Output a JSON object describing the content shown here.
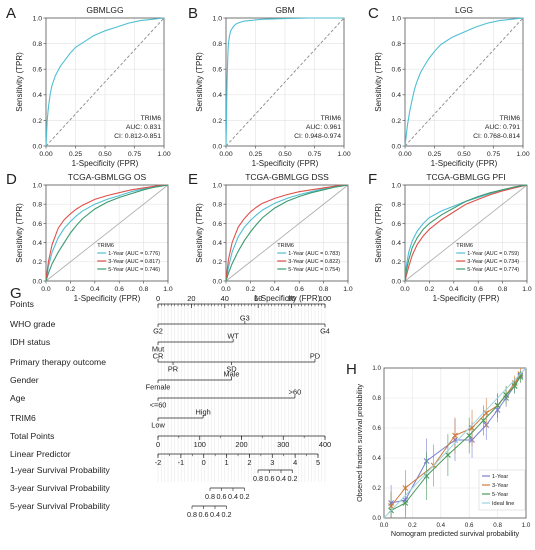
{
  "colors": {
    "cyan": "#4fbfd3",
    "red": "#e0504a",
    "green": "#3a9a6e",
    "teal": "#22a6a0",
    "grid": "#e6e6e6",
    "diag": "#8a8a8a",
    "frame": "#555555"
  },
  "chart_data": [
    {
      "id": "A",
      "panel_label": "A",
      "type": "line",
      "title": "GBMLGG",
      "xlabel": "1-Specificity (FPR)",
      "ylabel": "Sensitivity (TPR)",
      "xlim": [
        0,
        1
      ],
      "ylim": [
        0,
        1
      ],
      "xticks": [
        "0.00",
        "0.25",
        "0.50",
        "0.75",
        "1.00"
      ],
      "yticks": [
        "0.0",
        "0.2",
        "0.4",
        "0.6",
        "0.8",
        "1.0"
      ],
      "grid": true,
      "diagonal": "dashed",
      "series": [
        {
          "color": "cyan",
          "x": [
            0,
            0.005,
            0.01,
            0.02,
            0.035,
            0.05,
            0.08,
            0.12,
            0.16,
            0.2,
            0.25,
            0.3,
            0.35,
            0.4,
            0.5,
            0.6,
            0.7,
            0.8,
            0.9,
            1.0
          ],
          "y": [
            0,
            0.1,
            0.2,
            0.3,
            0.4,
            0.47,
            0.55,
            0.62,
            0.67,
            0.72,
            0.77,
            0.8,
            0.83,
            0.86,
            0.9,
            0.93,
            0.96,
            0.98,
            0.99,
            1.0
          ]
        }
      ],
      "annotation": [
        "TRIM6",
        "AUC: 0.831",
        "CI: 0.812-0.851"
      ]
    },
    {
      "id": "B",
      "panel_label": "B",
      "type": "line",
      "title": "GBM",
      "xlabel": "1-Specificity (FPR)",
      "ylabel": "Sensitivity (TPR)",
      "xlim": [
        0,
        1
      ],
      "ylim": [
        0,
        1
      ],
      "xticks": [
        "0.00",
        "0.25",
        "0.50",
        "0.75",
        "1.00"
      ],
      "yticks": [
        "0.0",
        "0.2",
        "0.4",
        "0.6",
        "0.8",
        "1.0"
      ],
      "grid": true,
      "diagonal": "dashed",
      "series": [
        {
          "color": "cyan",
          "x": [
            0,
            0.003,
            0.006,
            0.01,
            0.015,
            0.02,
            0.03,
            0.04,
            0.06,
            0.08,
            0.1,
            0.15,
            0.2,
            0.3,
            0.5,
            0.7,
            1.0
          ],
          "y": [
            0,
            0.15,
            0.35,
            0.55,
            0.7,
            0.8,
            0.86,
            0.9,
            0.93,
            0.95,
            0.96,
            0.975,
            0.98,
            0.99,
            0.995,
            1.0,
            1.0
          ]
        }
      ],
      "annotation": [
        "TRIM6",
        "AUC: 0.961",
        "CI: 0.948-0.974"
      ]
    },
    {
      "id": "C",
      "panel_label": "C",
      "type": "line",
      "title": "LGG",
      "xlabel": "1-Specificity (FPR)",
      "ylabel": "Sensitivity (TPR)",
      "xlim": [
        0,
        1
      ],
      "ylim": [
        0,
        1
      ],
      "xticks": [
        "0.00",
        "0.25",
        "0.50",
        "0.75",
        "1.00"
      ],
      "yticks": [
        "0.0",
        "0.2",
        "0.4",
        "0.6",
        "0.8",
        "1.0"
      ],
      "grid": true,
      "diagonal": "dashed",
      "series": [
        {
          "color": "cyan",
          "x": [
            0,
            0.01,
            0.02,
            0.04,
            0.06,
            0.08,
            0.1,
            0.13,
            0.16,
            0.2,
            0.25,
            0.3,
            0.35,
            0.4,
            0.5,
            0.6,
            0.7,
            0.8,
            0.9,
            1.0
          ],
          "y": [
            0,
            0.08,
            0.16,
            0.27,
            0.36,
            0.44,
            0.5,
            0.57,
            0.62,
            0.68,
            0.74,
            0.79,
            0.82,
            0.85,
            0.89,
            0.93,
            0.96,
            0.98,
            0.99,
            1.0
          ]
        }
      ],
      "annotation": [
        "TRIM6",
        "AUC: 0.791",
        "CI: 0.768-0.814"
      ]
    },
    {
      "id": "D",
      "panel_label": "D",
      "type": "line",
      "title": "TCGA-GBMLGG OS",
      "xlabel": "1-Specificity (FPR)",
      "ylabel": "Sensitivity (TPR)",
      "xlim": [
        0,
        1
      ],
      "ylim": [
        0,
        1
      ],
      "xticks": [
        "0.0",
        "0.2",
        "0.4",
        "0.6",
        "0.8",
        "1.0"
      ],
      "yticks": [
        "0.0",
        "0.2",
        "0.4",
        "0.6",
        "0.8",
        "1.0"
      ],
      "grid": true,
      "diagonal": "solid",
      "series": [
        {
          "name": "1-Year (AUC = 0.776)",
          "color": "cyan",
          "x": [
            0,
            0.02,
            0.05,
            0.1,
            0.15,
            0.2,
            0.25,
            0.3,
            0.4,
            0.5,
            0.6,
            0.7,
            0.8,
            0.9,
            1.0
          ],
          "y": [
            0,
            0.15,
            0.3,
            0.45,
            0.55,
            0.62,
            0.68,
            0.73,
            0.8,
            0.85,
            0.89,
            0.93,
            0.96,
            0.98,
            1.0
          ]
        },
        {
          "name": "3-Year (AUC = 0.817)",
          "color": "red",
          "x": [
            0,
            0.02,
            0.05,
            0.1,
            0.15,
            0.2,
            0.25,
            0.3,
            0.4,
            0.5,
            0.6,
            0.7,
            0.8,
            0.9,
            1.0
          ],
          "y": [
            0,
            0.2,
            0.38,
            0.55,
            0.64,
            0.7,
            0.75,
            0.79,
            0.85,
            0.89,
            0.92,
            0.95,
            0.97,
            0.99,
            1.0
          ]
        },
        {
          "name": "5-Year (AUC = 0.746)",
          "color": "green",
          "x": [
            0,
            0.02,
            0.05,
            0.1,
            0.15,
            0.2,
            0.25,
            0.3,
            0.4,
            0.5,
            0.6,
            0.7,
            0.8,
            0.9,
            1.0
          ],
          "y": [
            0,
            0.08,
            0.18,
            0.3,
            0.4,
            0.5,
            0.58,
            0.65,
            0.75,
            0.82,
            0.87,
            0.91,
            0.95,
            0.98,
            1.0
          ]
        }
      ],
      "legend_title": "TRIM6",
      "legend": "bottom-right"
    },
    {
      "id": "E",
      "panel_label": "E",
      "type": "line",
      "title": "TCGA-GBMLGG DSS",
      "xlabel": "1-Specificity (FPR)",
      "ylabel": "Sensitivity (TPR)",
      "xlim": [
        0,
        1
      ],
      "ylim": [
        0,
        1
      ],
      "xticks": [
        "0.0",
        "0.2",
        "0.4",
        "0.6",
        "0.8",
        "1.0"
      ],
      "yticks": [
        "0.0",
        "0.2",
        "0.4",
        "0.6",
        "0.8",
        "1.0"
      ],
      "grid": true,
      "diagonal": "solid",
      "series": [
        {
          "name": "1-Year (AUC = 0.783)",
          "color": "cyan",
          "x": [
            0,
            0.02,
            0.05,
            0.1,
            0.15,
            0.2,
            0.25,
            0.3,
            0.4,
            0.5,
            0.6,
            0.7,
            0.8,
            0.9,
            1.0
          ],
          "y": [
            0,
            0.14,
            0.3,
            0.46,
            0.56,
            0.63,
            0.69,
            0.74,
            0.81,
            0.86,
            0.9,
            0.93,
            0.96,
            0.98,
            1.0
          ]
        },
        {
          "name": "3-Year (AUC = 0.822)",
          "color": "red",
          "x": [
            0,
            0.02,
            0.05,
            0.1,
            0.15,
            0.2,
            0.25,
            0.3,
            0.4,
            0.5,
            0.6,
            0.7,
            0.8,
            0.9,
            1.0
          ],
          "y": [
            0,
            0.22,
            0.4,
            0.56,
            0.65,
            0.72,
            0.77,
            0.81,
            0.86,
            0.9,
            0.93,
            0.95,
            0.97,
            0.99,
            1.0
          ]
        },
        {
          "name": "5-Year (AUC = 0.754)",
          "color": "green",
          "x": [
            0,
            0.02,
            0.05,
            0.1,
            0.15,
            0.2,
            0.25,
            0.3,
            0.4,
            0.5,
            0.6,
            0.7,
            0.8,
            0.9,
            1.0
          ],
          "y": [
            0,
            0.08,
            0.18,
            0.31,
            0.42,
            0.51,
            0.59,
            0.66,
            0.76,
            0.83,
            0.88,
            0.92,
            0.95,
            0.98,
            1.0
          ]
        }
      ],
      "legend_title": "TRIM6",
      "legend": "bottom-right"
    },
    {
      "id": "F",
      "panel_label": "F",
      "type": "line",
      "title": "TCGA-GBMLGG PFI",
      "xlabel": "1-Specificity (FPR)",
      "ylabel": "Sensitivity (TPR)",
      "xlim": [
        0,
        1
      ],
      "ylim": [
        0,
        1
      ],
      "xticks": [
        "0.0",
        "0.2",
        "0.4",
        "0.6",
        "0.8",
        "1.0"
      ],
      "yticks": [
        "0.0",
        "0.2",
        "0.4",
        "0.6",
        "0.8",
        "1.0"
      ],
      "grid": true,
      "diagonal": "solid",
      "series": [
        {
          "name": "1-Year (AUC = 0.759)",
          "color": "cyan",
          "x": [
            0,
            0.01,
            0.03,
            0.06,
            0.1,
            0.15,
            0.2,
            0.3,
            0.4,
            0.5,
            0.6,
            0.7,
            0.8,
            0.9,
            1.0
          ],
          "y": [
            0,
            0.15,
            0.3,
            0.42,
            0.52,
            0.6,
            0.66,
            0.73,
            0.78,
            0.83,
            0.87,
            0.91,
            0.95,
            0.98,
            1.0
          ]
        },
        {
          "name": "3-Year (AUC = 0.734)",
          "color": "red",
          "x": [
            0,
            0.01,
            0.03,
            0.06,
            0.1,
            0.15,
            0.2,
            0.3,
            0.4,
            0.5,
            0.6,
            0.7,
            0.8,
            0.9,
            1.0
          ],
          "y": [
            0,
            0.05,
            0.15,
            0.27,
            0.38,
            0.47,
            0.54,
            0.64,
            0.72,
            0.8,
            0.85,
            0.9,
            0.94,
            0.97,
            1.0
          ]
        },
        {
          "name": "5-Year (AUC = 0.774)",
          "color": "green",
          "x": [
            0,
            0.01,
            0.03,
            0.06,
            0.1,
            0.15,
            0.2,
            0.3,
            0.4,
            0.5,
            0.6,
            0.7,
            0.8,
            0.9,
            1.0
          ],
          "y": [
            0,
            0.1,
            0.22,
            0.35,
            0.45,
            0.54,
            0.6,
            0.69,
            0.76,
            0.83,
            0.88,
            0.92,
            0.95,
            0.98,
            1.0
          ]
        }
      ],
      "legend_title": "TRIM6",
      "legend": "bottom-right"
    },
    {
      "id": "G",
      "panel_label": "G",
      "type": "nomogram",
      "rows": [
        {
          "label": "Points",
          "scale": {
            "from": 0,
            "to": 100,
            "labels": [
              "0",
              "20",
              "40",
              "60",
              "80",
              "100"
            ]
          }
        },
        {
          "label": "WHO grade",
          "marks": [
            {
              "text": "G2",
              "pos": 0
            },
            {
              "text": "G3",
              "pos": 52
            },
            {
              "text": "G4",
              "pos": 100
            }
          ]
        },
        {
          "label": "IDH status",
          "marks": [
            {
              "text": "Mut",
              "pos": 0
            },
            {
              "text": "WT",
              "pos": 45
            }
          ]
        },
        {
          "label": "Primary therapy outcome",
          "marks": [
            {
              "text": "PR",
              "pos": 9
            },
            {
              "text": "CR",
              "pos": 0
            },
            {
              "text": "SD",
              "pos": 44
            },
            {
              "text": "PD",
              "pos": 94
            }
          ]
        },
        {
          "label": "Gender",
          "marks": [
            {
              "text": "Female",
              "pos": 0
            },
            {
              "text": "Male",
              "pos": 44
            }
          ]
        },
        {
          "label": "Age",
          "marks": [
            {
              "text": "<=60",
              "pos": 0
            },
            {
              "text": ">60",
              "pos": 82
            }
          ]
        },
        {
          "label": "TRIM6",
          "marks": [
            {
              "text": "Low",
              "pos": 0
            },
            {
              "text": "High",
              "pos": 27
            }
          ]
        },
        {
          "label": "Total Points",
          "scale": {
            "from": 0,
            "to": 400,
            "labels": [
              "0",
              "100",
              "200",
              "300",
              "400"
            ]
          }
        },
        {
          "label": "Linear Predictor",
          "scale": {
            "from": -2,
            "to": 5,
            "labels": [
              "-2",
              "-1",
              "0",
              "1",
              "2",
              "3",
              "4",
              "5"
            ]
          }
        },
        {
          "label": "1-year Survival Probability",
          "ticks": [
            "0.8",
            "0.6",
            "0.4",
            "0.2"
          ]
        },
        {
          "label": "3-year Survival Probability",
          "ticks": [
            "0.8",
            "0.6",
            "0.4",
            "0.2"
          ]
        },
        {
          "label": "5-year Survival Probability",
          "ticks": [
            "0.8",
            "0.6",
            "0.4",
            "0.2"
          ]
        }
      ]
    },
    {
      "id": "H",
      "panel_label": "H",
      "type": "line",
      "xlabel": "Nomogram predicted survival probability",
      "ylabel": "Observed fraction survival probability",
      "xlim": [
        0,
        1
      ],
      "ylim": [
        0,
        1
      ],
      "xticks": [
        "0.0",
        "0.2",
        "0.4",
        "0.6",
        "0.8",
        "1.0"
      ],
      "yticks": [
        "0.0",
        "0.2",
        "0.4",
        "0.6",
        "0.8",
        "1.0"
      ],
      "grid": true,
      "diagonal": "ideal",
      "series": [
        {
          "name": "1-Year",
          "color": "#7b7fd4",
          "x": [
            0.05,
            0.15,
            0.3,
            0.5,
            0.62,
            0.72,
            0.8,
            0.86,
            0.92,
            0.96
          ],
          "y": [
            0.1,
            0.12,
            0.38,
            0.52,
            0.52,
            0.62,
            0.72,
            0.8,
            0.88,
            0.95
          ],
          "err": [
            0.12,
            0.1,
            0.15,
            0.14,
            0.12,
            0.1,
            0.08,
            0.06,
            0.05,
            0.04
          ]
        },
        {
          "name": "3-Year",
          "color": "#d07a3b",
          "x": [
            0.05,
            0.15,
            0.35,
            0.5,
            0.62,
            0.72,
            0.8,
            0.86,
            0.92,
            0.96
          ],
          "y": [
            0.08,
            0.2,
            0.35,
            0.55,
            0.6,
            0.7,
            0.75,
            0.82,
            0.9,
            0.96
          ],
          "err": [
            0.1,
            0.12,
            0.14,
            0.12,
            0.12,
            0.1,
            0.08,
            0.06,
            0.05,
            0.04
          ]
        },
        {
          "name": "5-Year",
          "color": "#4a9a5a",
          "x": [
            0.05,
            0.15,
            0.3,
            0.45,
            0.6,
            0.7,
            0.8,
            0.86,
            0.92,
            0.96
          ],
          "y": [
            0.05,
            0.1,
            0.28,
            0.42,
            0.55,
            0.65,
            0.75,
            0.82,
            0.88,
            0.94
          ],
          "err": [
            0.12,
            0.12,
            0.16,
            0.14,
            0.12,
            0.1,
            0.08,
            0.06,
            0.05,
            0.04
          ]
        },
        {
          "name": "Ideal line",
          "color": "#9bd3e0",
          "x": [
            0,
            1
          ],
          "y": [
            0,
            1
          ]
        }
      ],
      "legend": "bottom-right"
    }
  ]
}
